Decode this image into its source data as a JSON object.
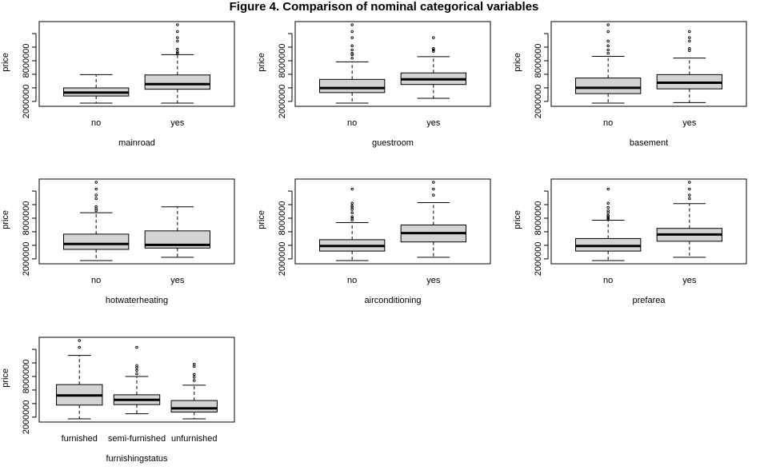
{
  "title": "Figure 4. Comparison of nominal categorical variables",
  "colors": {
    "box_fill": "#d3d3d3",
    "stroke": "#000000",
    "background": "#ffffff"
  },
  "chart_data": [
    {
      "type": "boxplot",
      "xlabel": "mainroad",
      "ylabel": "price",
      "yticks": [
        2000000,
        8000000
      ],
      "ylim": [
        1750000,
        13300000
      ],
      "categories": [
        "no",
        "yes"
      ],
      "boxes": [
        {
          "whisker_low": 1750000,
          "q1": 2800000,
          "median": 3300000,
          "q3": 3990000,
          "whisker_high": 5950000,
          "outliers": []
        },
        {
          "whisker_low": 1750000,
          "q1": 3800000,
          "median": 4550000,
          "q3": 5900000,
          "whisker_high": 8900000,
          "outliers": [
            9100000,
            9300000,
            9700000,
            10900000,
            11400000,
            12300000,
            13300000
          ]
        }
      ]
    },
    {
      "type": "boxplot",
      "xlabel": "guestroom",
      "ylabel": "price",
      "yticks": [
        2000000,
        8000000
      ],
      "ylim": [
        1750000,
        13300000
      ],
      "categories": [
        "no",
        "yes"
      ],
      "boxes": [
        {
          "whisker_low": 1750000,
          "q1": 3300000,
          "median": 3980000,
          "q3": 5250000,
          "whisker_high": 7840000,
          "outliers": [
            8400000,
            8900000,
            9100000,
            9600000,
            10200000,
            11400000,
            12300000,
            13300000
          ]
        },
        {
          "whisker_low": 2450000,
          "q1": 4500000,
          "median": 5250000,
          "q3": 6200000,
          "whisker_high": 8600000,
          "outliers": [
            9400000,
            9600000,
            9800000,
            11400000
          ]
        }
      ]
    },
    {
      "type": "boxplot",
      "xlabel": "basement",
      "ylabel": "price",
      "yticks": [
        2000000,
        8000000
      ],
      "ylim": [
        1750000,
        13300000
      ],
      "categories": [
        "no",
        "yes"
      ],
      "boxes": [
        {
          "whisker_low": 1750000,
          "q1": 3150000,
          "median": 4000000,
          "q3": 5450000,
          "whisker_high": 8650000,
          "outliers": [
            9100000,
            9600000,
            10200000,
            10900000,
            12300000,
            13300000
          ]
        },
        {
          "whisker_low": 1820000,
          "q1": 3850000,
          "median": 4750000,
          "q3": 5950000,
          "whisker_high": 8400000,
          "outliers": [
            9500000,
            9800000,
            10900000,
            11400000,
            12300000
          ]
        }
      ]
    },
    {
      "type": "boxplot",
      "xlabel": "hotwaterheating",
      "ylabel": "price",
      "yticks": [
        2000000,
        8000000
      ],
      "ylim": [
        1750000,
        13300000
      ],
      "categories": [
        "no",
        "yes"
      ],
      "boxes": [
        {
          "whisker_low": 1750000,
          "q1": 3400000,
          "median": 4200000,
          "q3": 5650000,
          "whisker_high": 8800000,
          "outliers": [
            9100000,
            9400000,
            9700000,
            10900000,
            11400000,
            12300000,
            13300000
          ]
        },
        {
          "whisker_low": 2240000,
          "q1": 3600000,
          "median": 4060000,
          "q3": 6130000,
          "whisker_high": 9680000,
          "outliers": []
        }
      ]
    },
    {
      "type": "boxplot",
      "xlabel": "airconditioning",
      "ylabel": "price",
      "yticks": [
        2000000,
        8000000
      ],
      "ylim": [
        1750000,
        13300000
      ],
      "categories": [
        "no",
        "yes"
      ],
      "boxes": [
        {
          "whisker_low": 1750000,
          "q1": 3150000,
          "median": 3900000,
          "q3": 4830000,
          "whisker_high": 7350000,
          "outliers": [
            7700000,
            8000000,
            8200000,
            8800000,
            9300000,
            9600000,
            9800000,
            10200000,
            12300000
          ]
        },
        {
          "whisker_low": 2240000,
          "q1": 4500000,
          "median": 5800000,
          "q3": 7000000,
          "whisker_high": 10300000,
          "outliers": [
            11400000,
            12300000,
            13300000
          ]
        }
      ]
    },
    {
      "type": "boxplot",
      "xlabel": "prefarea",
      "ylabel": "price",
      "yticks": [
        2000000,
        8000000
      ],
      "ylim": [
        1750000,
        13300000
      ],
      "categories": [
        "no",
        "yes"
      ],
      "boxes": [
        {
          "whisker_low": 1750000,
          "q1": 3150000,
          "median": 3900000,
          "q3": 5000000,
          "whisker_high": 7700000,
          "outliers": [
            7800000,
            8000000,
            8200000,
            8400000,
            8800000,
            9100000,
            9600000,
            10200000,
            12300000
          ]
        },
        {
          "whisker_low": 2240000,
          "q1": 4600000,
          "median": 5600000,
          "q3": 6500000,
          "whisker_high": 10150000,
          "outliers": [
            10900000,
            11400000,
            12300000,
            13300000
          ]
        }
      ]
    },
    {
      "type": "boxplot",
      "xlabel": "furnishingstatus",
      "ylabel": "price",
      "yticks": [
        2000000,
        8000000
      ],
      "ylim": [
        1750000,
        13300000
      ],
      "categories": [
        "furnished",
        "semi-furnished",
        "unfurnished"
      ],
      "boxes": [
        {
          "whisker_low": 1750000,
          "q1": 3780000,
          "median": 5200000,
          "q3": 6800000,
          "whisker_high": 11100000,
          "outliers": [
            12300000,
            13300000
          ]
        },
        {
          "whisker_low": 2500000,
          "q1": 3850000,
          "median": 4550000,
          "q3": 5300000,
          "whisker_high": 8000000,
          "outliers": [
            8400000,
            8900000,
            9300000,
            9600000,
            12300000
          ]
        },
        {
          "whisker_low": 1750000,
          "q1": 2750000,
          "median": 3300000,
          "q3": 4450000,
          "whisker_high": 6720000,
          "outliers": [
            7400000,
            7900000,
            8300000,
            9500000,
            9800000
          ]
        }
      ]
    }
  ]
}
